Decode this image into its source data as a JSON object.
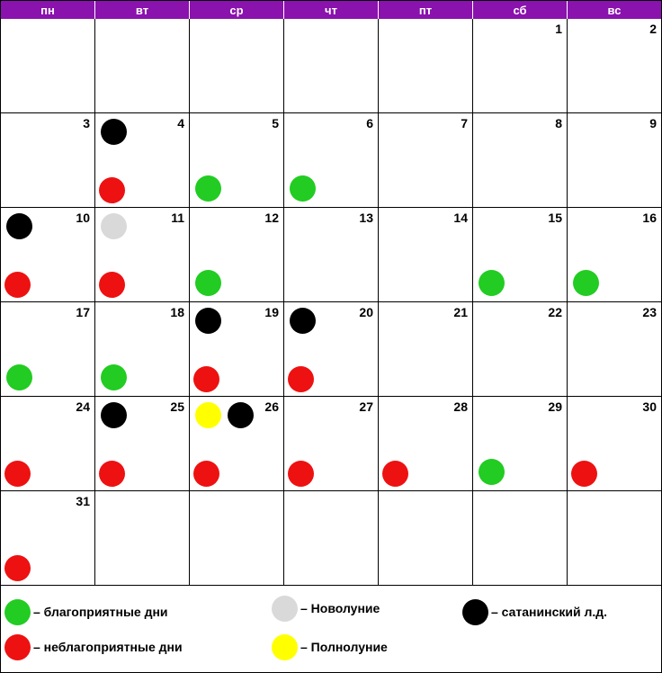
{
  "colors": {
    "header_bg": "#8a12ad",
    "favorable": "#22cc22",
    "unfavorable": "#ee1111",
    "new_moon": "#d9d9d9",
    "full_moon": "#ffff00",
    "satanic": "#000000"
  },
  "weekdays": [
    "пн",
    "вт",
    "ср",
    "чт",
    "пт",
    "сб",
    "вс"
  ],
  "weeks": [
    [
      "",
      "",
      "",
      "",
      "",
      "1",
      "2"
    ],
    [
      "3",
      "4",
      "5",
      "6",
      "7",
      "8",
      "9"
    ],
    [
      "10",
      "11",
      "12",
      "13",
      "14",
      "15",
      "16"
    ],
    [
      "17",
      "18",
      "19",
      "20",
      "21",
      "22",
      "23"
    ],
    [
      "24",
      "25",
      "26",
      "27",
      "28",
      "29",
      "30"
    ],
    [
      "31",
      "",
      "",
      "",
      "",
      "",
      ""
    ]
  ],
  "day_marks": {
    "4": [
      "satanic",
      "unfavorable"
    ],
    "5": [
      "favorable"
    ],
    "6": [
      "favorable"
    ],
    "10": [
      "satanic",
      "unfavorable"
    ],
    "11": [
      "new_moon",
      "unfavorable"
    ],
    "12": [
      "favorable"
    ],
    "15": [
      "favorable"
    ],
    "16": [
      "favorable"
    ],
    "17": [
      "favorable"
    ],
    "18": [
      "favorable"
    ],
    "19": [
      "satanic",
      "unfavorable"
    ],
    "20": [
      "satanic",
      "unfavorable"
    ],
    "24": [
      "unfavorable"
    ],
    "25": [
      "satanic",
      "unfavorable"
    ],
    "26": [
      "full_moon",
      "satanic",
      "unfavorable"
    ],
    "27": [
      "unfavorable"
    ],
    "28": [
      "unfavorable"
    ],
    "29": [
      "favorable"
    ],
    "30": [
      "unfavorable"
    ],
    "31": [
      "unfavorable"
    ]
  },
  "legend": {
    "favorable": "– благоприятные дни",
    "unfavorable": "– неблагоприятные дни",
    "new_moon": "– Новолуние",
    "full_moon": "– Полнолуние",
    "satanic": "– сатанинский л.д."
  }
}
